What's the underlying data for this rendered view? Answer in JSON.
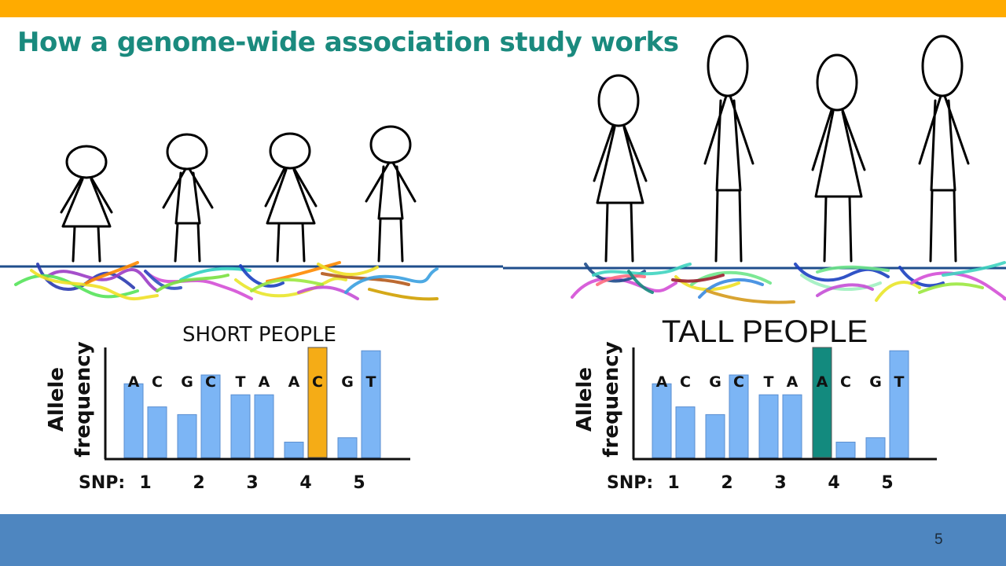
{
  "slide": {
    "title": "How a genome-wide association study works",
    "page_number": "5"
  },
  "colors": {
    "top_bar": "#ffab00",
    "bottom_bar": "#4e86c0",
    "title": "#1a8a7e",
    "bar_default": "#7cb5f5",
    "bar_short_highlight": "#f5ac16",
    "bar_tall_highlight": "#138a7e",
    "ground_line": "#1f4e8c"
  },
  "icons": {
    "short_figures": "stick-person-short",
    "tall_figures": "stick-person-tall",
    "dna_strands": "dna-strand"
  },
  "panels": [
    {
      "title": "SHORT PEOPLE",
      "ylabel_line1": "Allele",
      "ylabel_line2": "frequency",
      "snp_label": "SNP:",
      "highlight_snp": 4
    },
    {
      "title": "TALL PEOPLE",
      "ylabel_line1": "Allele",
      "ylabel_line2": "frequency",
      "snp_label": "SNP:",
      "highlight_snp": 4
    }
  ],
  "chart_data": [
    {
      "type": "bar",
      "title": "SHORT PEOPLE",
      "ylabel": "Allele frequency",
      "xlabel": "SNP:",
      "categories": [
        "1",
        "2",
        "3",
        "4",
        "5"
      ],
      "alleles": [
        [
          "A",
          "C"
        ],
        [
          "G",
          "C"
        ],
        [
          "T",
          "A"
        ],
        [
          "A",
          "C"
        ],
        [
          "G",
          "T"
        ]
      ],
      "values": [
        [
          0.67,
          0.46
        ],
        [
          0.39,
          0.75
        ],
        [
          0.57,
          0.57
        ],
        [
          0.14,
          1.0
        ],
        [
          0.18,
          0.97
        ]
      ],
      "ylim": [
        0,
        1
      ],
      "highlight": [
        3,
        1
      ]
    },
    {
      "type": "bar",
      "title": "TALL PEOPLE",
      "ylabel": "Allele frequency",
      "xlabel": "SNP:",
      "categories": [
        "1",
        "2",
        "3",
        "4",
        "5"
      ],
      "alleles": [
        [
          "A",
          "C"
        ],
        [
          "G",
          "C"
        ],
        [
          "T",
          "A"
        ],
        [
          "A",
          "C"
        ],
        [
          "G",
          "T"
        ]
      ],
      "values": [
        [
          0.67,
          0.46
        ],
        [
          0.39,
          0.75
        ],
        [
          0.57,
          0.57
        ],
        [
          1.0,
          0.14
        ],
        [
          0.18,
          0.97
        ]
      ],
      "ylim": [
        0,
        1
      ],
      "highlight": [
        3,
        0
      ]
    }
  ]
}
